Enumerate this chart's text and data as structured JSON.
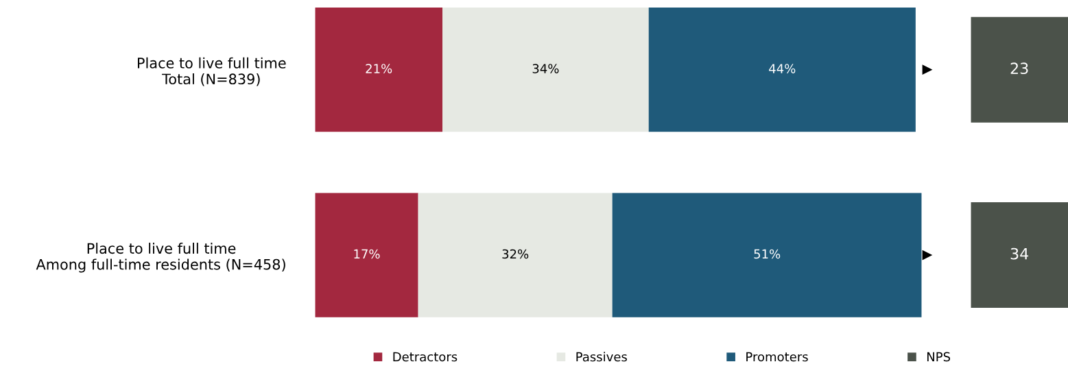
{
  "chart_data": [
    {
      "type": "bar",
      "orientation": "horizontal",
      "stacked": true,
      "categories": [
        "Place to live full time\nTotal (N=839)",
        "Place to live full time\nAmong full-time residents (N=458)"
      ],
      "series": [
        {
          "name": "Detractors",
          "color": "#a3283f",
          "values": [
            21,
            17
          ],
          "value_labels": [
            "21%",
            "17%"
          ]
        },
        {
          "name": "Passives",
          "color": "#e6e9e3",
          "values": [
            34,
            32
          ],
          "value_labels": [
            "34%",
            "32%"
          ]
        },
        {
          "name": "Promoters",
          "color": "#1f5a7a",
          "values": [
            44,
            51
          ],
          "value_labels": [
            "44%",
            "51%"
          ]
        }
      ],
      "legend": "bottom"
    },
    {
      "type": "other",
      "categories": [
        null,
        null
      ],
      "series": [
        {
          "name": "NPS",
          "color": "#4b524a",
          "values": [
            23,
            34
          ]
        }
      ],
      "data_labels": true,
      "legend": "bottom"
    }
  ]
}
